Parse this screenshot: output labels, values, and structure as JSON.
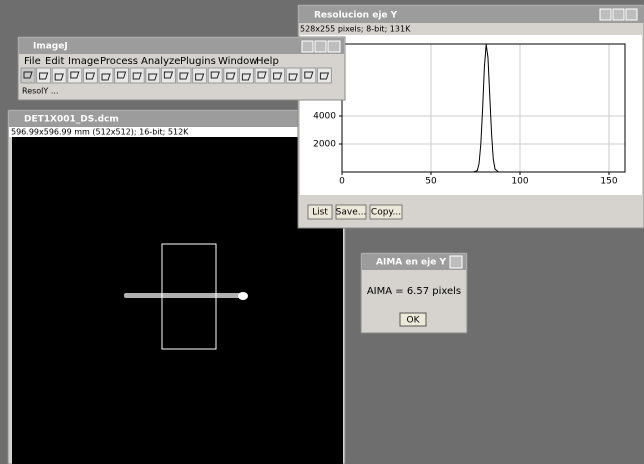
{
  "plot_window": {
    "title": "Resolucion eje Y",
    "info": "528x255 pixels; 8-bit; 131K",
    "buttons": [
      "List",
      "Save...",
      "Copy..."
    ],
    "chart_data": {
      "type": "line",
      "x": [
        0,
        60,
        70,
        74,
        76,
        77,
        78,
        79,
        80,
        81,
        82,
        83,
        84,
        85,
        86,
        88,
        92,
        100,
        159
      ],
      "series": [
        {
          "color": "#000000",
          "values": [
            0,
            0,
            0,
            0,
            100,
            600,
            2000,
            4500,
            7500,
            9100,
            8200,
            5500,
            2800,
            900,
            200,
            0,
            0,
            0,
            0
          ]
        }
      ],
      "xlim": [
        0,
        159
      ],
      "ylim": [
        0,
        9140
      ],
      "xticks": [
        0,
        50,
        100,
        150
      ],
      "yticks": [
        2000,
        4000
      ],
      "grid": true
    }
  },
  "imagej_window": {
    "title": "ImageJ",
    "menu": [
      "File",
      "Edit",
      "Image",
      "Process",
      "Analyze",
      "Plugins",
      "Window",
      "Help"
    ],
    "status": "ResolY ..."
  },
  "image_window": {
    "title": "DET1X001_DS.dcm",
    "info": "596.99x596.99 mm (512x512); 16-bit; 512K"
  },
  "dialog": {
    "title": "AIMA en eje Y",
    "message": "AIMA = 6.57 pixels",
    "button": "OK"
  }
}
